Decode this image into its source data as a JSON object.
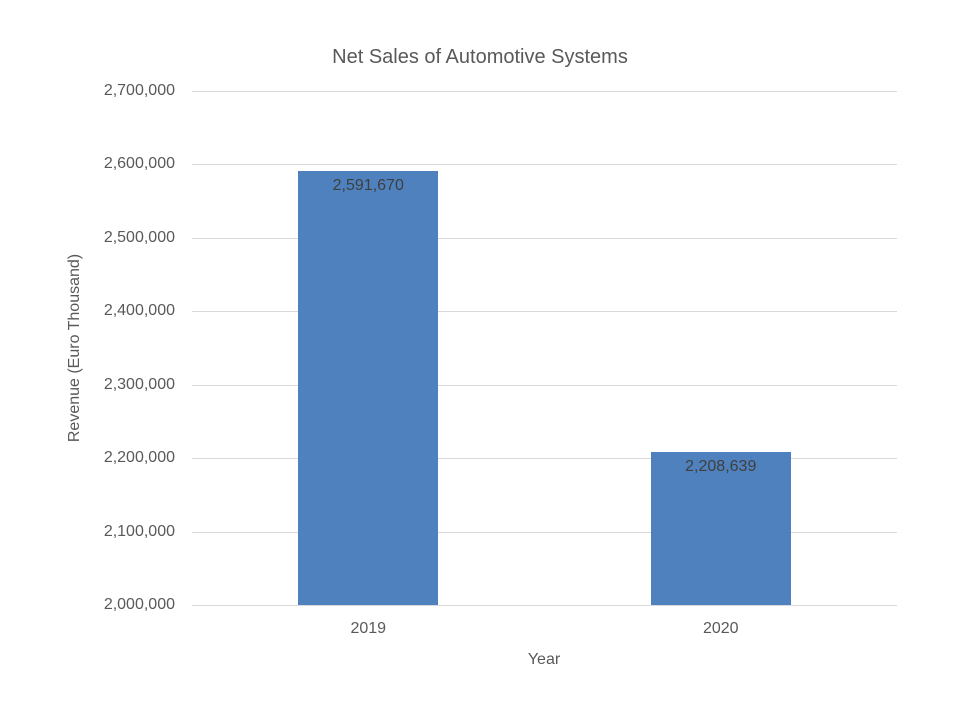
{
  "chart_data": {
    "type": "bar",
    "title": "Net Sales of Automotive Systems",
    "xlabel": "Year",
    "ylabel": "Revenue (Euro Thousand)",
    "categories": [
      "2019",
      "2020"
    ],
    "values": [
      2591670,
      2208639
    ],
    "value_labels": [
      "2,591,670",
      "2,208,639"
    ],
    "ylim": [
      2000000,
      2700000
    ],
    "ytick_step": 100000,
    "ytick_labels": [
      "2,000,000",
      "2,100,000",
      "2,200,000",
      "2,300,000",
      "2,400,000",
      "2,500,000",
      "2,600,000",
      "2,700,000"
    ],
    "grid": true,
    "legend": "none",
    "colors": {
      "bar": "#4E81BD",
      "gridline": "#D9D9D9",
      "axis_line": "#D9D9D9",
      "title_text": "#595959",
      "tick_text": "#595959",
      "axis_title_text": "#595959",
      "data_label_text": "#3F3F3F",
      "background": "#FFFFFF"
    }
  }
}
